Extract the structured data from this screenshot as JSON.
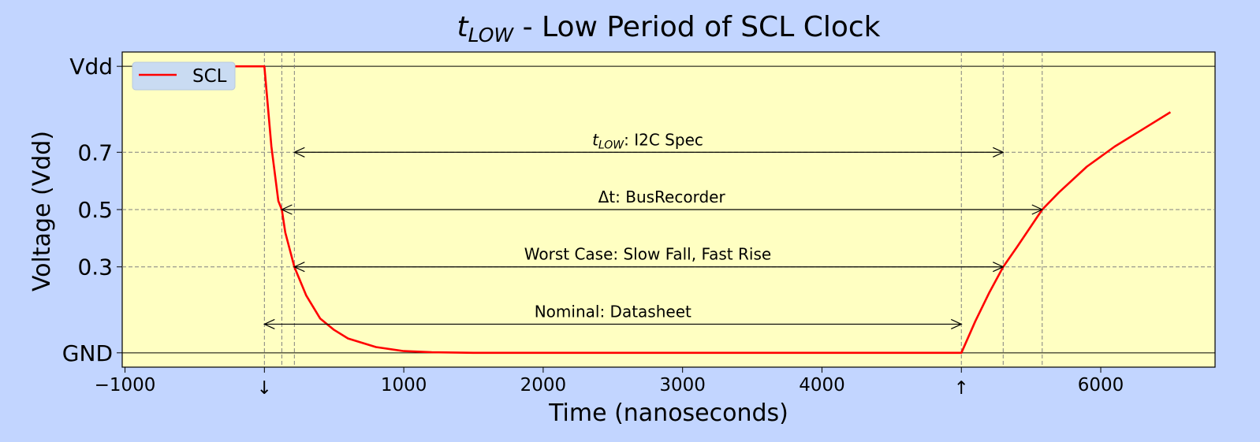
{
  "colors": {
    "figure_bg": "#c2d5ff",
    "plot_bg": "#ffffc2",
    "signal": "#ff0000",
    "legend_bg": "#c9dbf2"
  },
  "chart_data": {
    "type": "line",
    "title": {
      "symbol": "t",
      "subscript": "LOW",
      "text": " - Low Period of SCL Clock"
    },
    "xlabel": "Time (nanoseconds)",
    "ylabel": "Voltage (Vdd)",
    "xlim": [
      -1020,
      6820
    ],
    "ylim": [
      -0.05,
      1.05
    ],
    "xticks": [
      {
        "value": -1000,
        "label": "−1000"
      },
      {
        "value": 0,
        "label": "↓"
      },
      {
        "value": 1000,
        "label": "1000"
      },
      {
        "value": 2000,
        "label": "2000"
      },
      {
        "value": 3000,
        "label": "3000"
      },
      {
        "value": 4000,
        "label": "4000"
      },
      {
        "value": 5000,
        "label": "↑"
      },
      {
        "value": 6000,
        "label": "6000"
      }
    ],
    "yticks": [
      {
        "value": 0,
        "label": "GND"
      },
      {
        "value": 0.3,
        "label": "0.3"
      },
      {
        "value": 0.5,
        "label": "0.5"
      },
      {
        "value": 0.7,
        "label": "0.7"
      },
      {
        "value": 1,
        "label": "Vdd"
      }
    ],
    "hlines_solid": [
      0,
      1
    ],
    "hlines_dashed": [
      0.3,
      0.5,
      0.7
    ],
    "vlines_dashed": [
      0,
      125,
      215,
      5000,
      5300,
      5580
    ],
    "series": [
      {
        "name": "SCL",
        "x": [
          -700,
          0,
          50,
          100,
          125,
          150,
          215,
          300,
          400,
          500,
          600,
          800,
          1000,
          1200,
          1500,
          2000,
          3000,
          4000,
          5000,
          5100,
          5200,
          5300,
          5400,
          5580,
          5700,
          5900,
          6100,
          6300,
          6500
        ],
        "y": [
          1.0,
          1.0,
          0.72,
          0.53,
          0.5,
          0.42,
          0.3,
          0.2,
          0.12,
          0.08,
          0.05,
          0.02,
          0.006,
          0.002,
          0.0,
          0.0,
          0.0,
          0.0,
          0.0,
          0.11,
          0.21,
          0.3,
          0.37,
          0.5,
          0.56,
          0.65,
          0.72,
          0.78,
          0.84
        ]
      }
    ],
    "annotations": [
      {
        "symbol": "t",
        "subscript": "LOW",
        "text": ": I2C Spec",
        "y": 0.7,
        "x_start": 215,
        "x_end": 5300,
        "text_x": 2750
      },
      {
        "symbol": "",
        "subscript": "",
        "text": "Δt: BusRecorder",
        "y": 0.5,
        "x_start": 125,
        "x_end": 5580,
        "text_x": 2850
      },
      {
        "symbol": "",
        "subscript": "",
        "text": "Worst Case: Slow Fall, Fast Rise",
        "y": 0.3,
        "x_start": 215,
        "x_end": 5300,
        "text_x": 2750
      },
      {
        "symbol": "",
        "subscript": "",
        "text": "Nominal: Datasheet",
        "y": 0.1,
        "x_start": 0,
        "x_end": 5000,
        "text_x": 2500
      }
    ],
    "legend": {
      "label": "SCL",
      "position": "top-left"
    },
    "grid": false
  }
}
